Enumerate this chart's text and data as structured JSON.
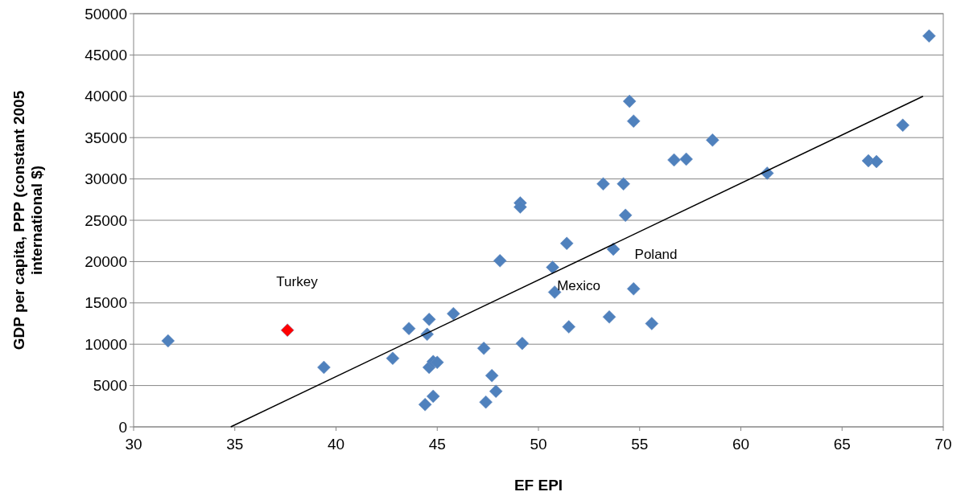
{
  "chart_data": {
    "type": "scatter",
    "xlabel": "EF EPI",
    "ylabel": "GDP per capita, PPP (constant 2005 international $)",
    "xlim": [
      30,
      70
    ],
    "xticks": [
      30,
      35,
      40,
      45,
      50,
      55,
      60,
      65,
      70
    ],
    "ylim": [
      0,
      50000
    ],
    "yticks": [
      0,
      5000,
      10000,
      15000,
      20000,
      25000,
      30000,
      35000,
      40000,
      45000,
      50000
    ],
    "grid": "y",
    "marker": "diamond",
    "series": [
      {
        "color": "#4f81bd",
        "x": [
          31.7,
          39.4,
          42.8,
          43.6,
          44.5,
          44.6,
          44.6,
          44.8,
          45.0,
          44.4,
          44.8,
          45.8,
          47.3,
          47.4,
          47.7,
          47.9,
          48.1,
          49.1,
          49.1,
          49.2,
          50.7,
          50.8,
          51.4,
          51.5,
          53.2,
          53.5,
          53.7,
          54.2,
          54.3,
          54.5,
          54.7,
          54.7,
          55.6,
          56.7,
          57.3,
          58.6,
          61.3,
          66.3,
          66.7,
          68.0,
          69.3
        ],
        "values": [
          10400,
          7200,
          8300,
          11900,
          11200,
          13000,
          7200,
          7900,
          7800,
          2700,
          3700,
          13700,
          9500,
          3000,
          6200,
          4300,
          20100,
          27100,
          26600,
          10100,
          19300,
          16300,
          22200,
          12100,
          29400,
          13300,
          21500,
          29400,
          25600,
          39400,
          37000,
          16700,
          12500,
          32300,
          32400,
          34700,
          30700,
          32200,
          32100,
          36500,
          47300
        ]
      },
      {
        "color": "#ff0000",
        "x": [
          37.6
        ],
        "values": [
          11700
        ]
      },
      {
        "type": "line",
        "color": "#000000",
        "marker": "none",
        "x": [
          34.8,
          69.0
        ],
        "values": [
          0,
          40000
        ]
      }
    ],
    "annotations": [
      "Turkey",
      {
        "text": "Poland",
        "x": 53.7,
        "y": 21500
      },
      {
        "text": "Mexico",
        "x": 50.8,
        "y": 16300
      }
    ]
  }
}
